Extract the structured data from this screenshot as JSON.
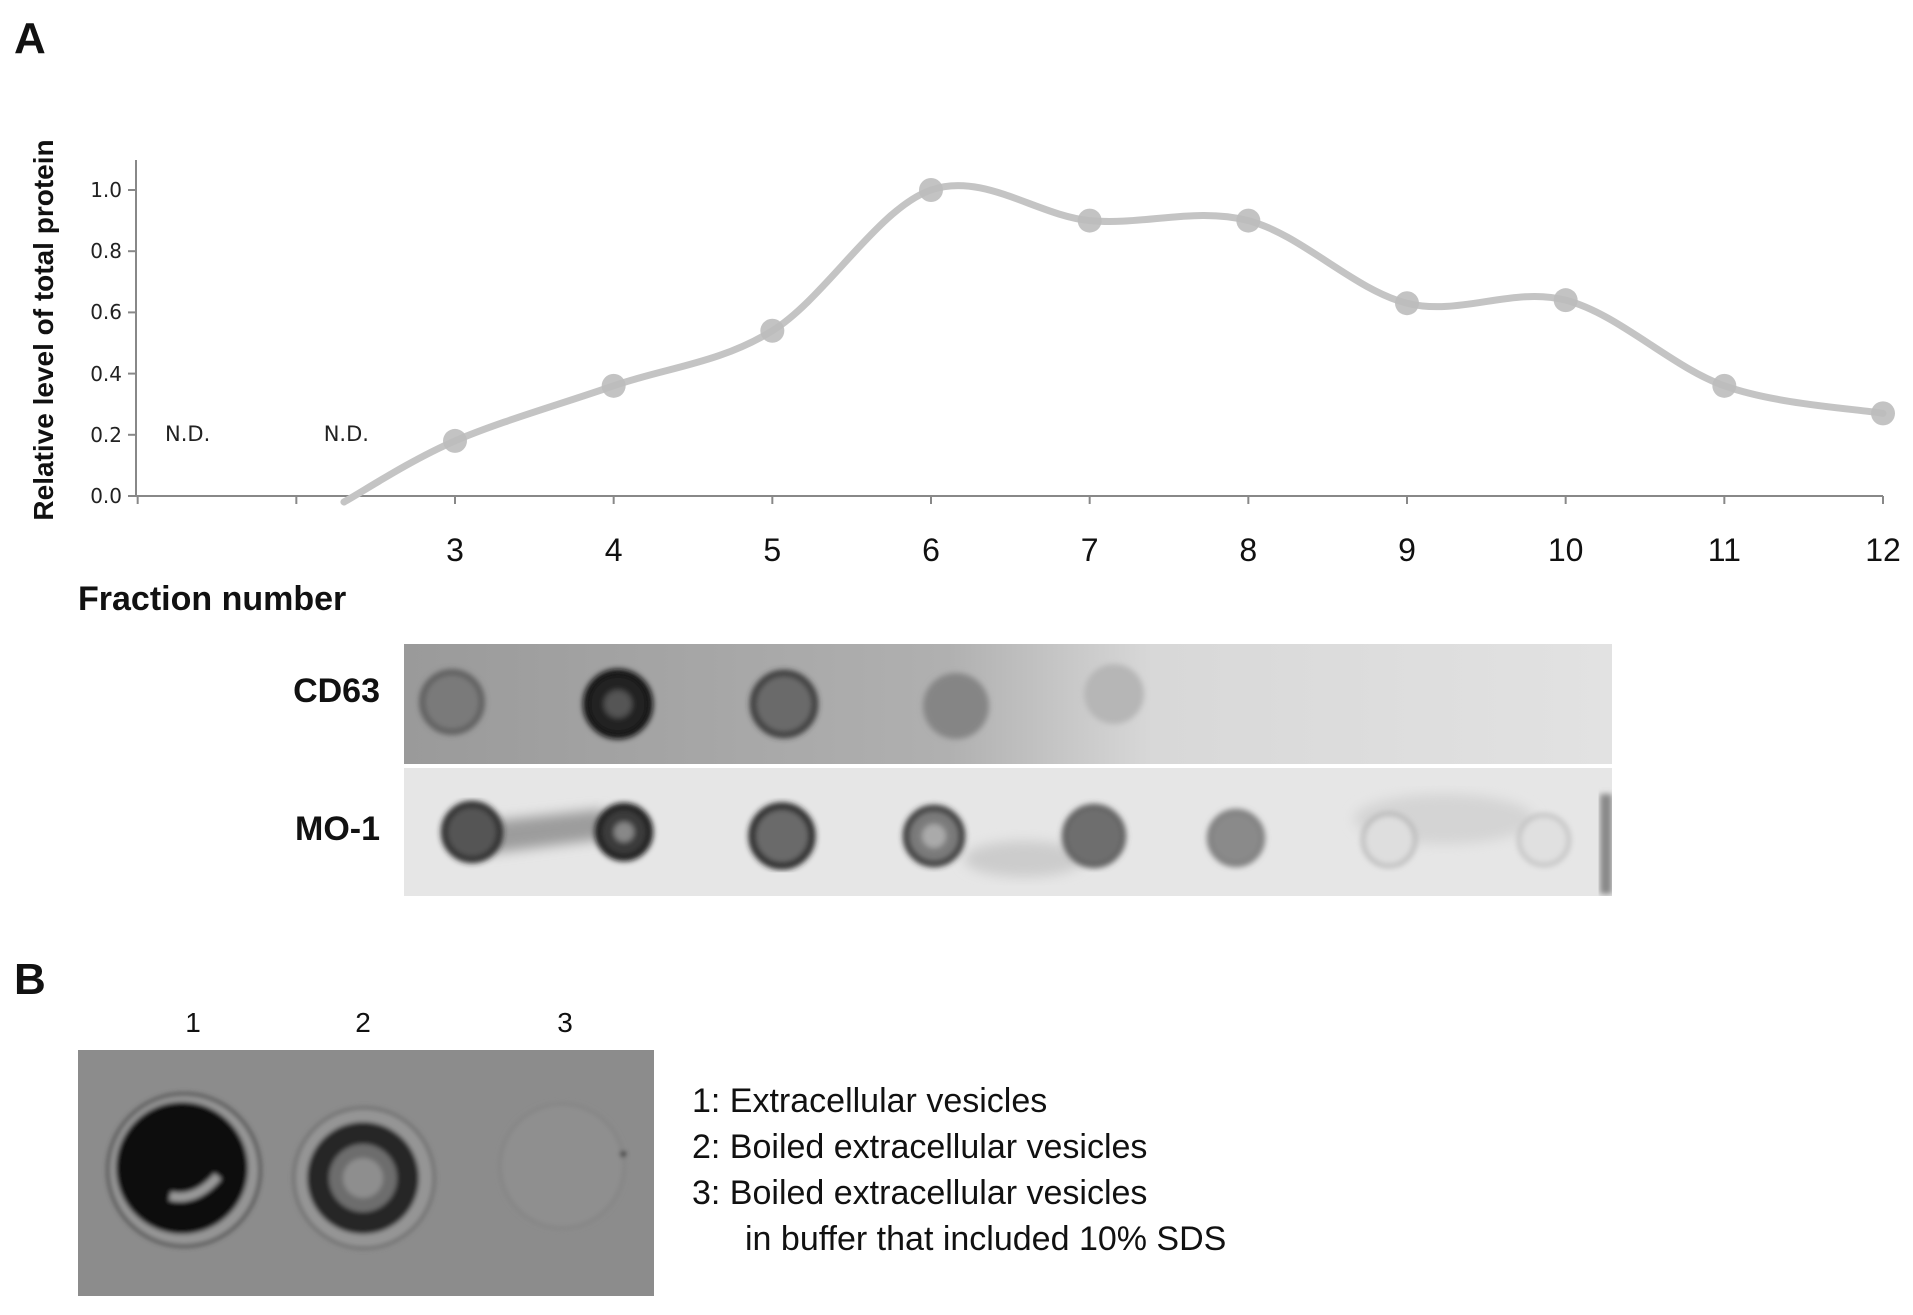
{
  "panels": {
    "a": "A",
    "b": "B"
  },
  "chart_data": {
    "type": "line",
    "ylabel": "Relative level of total protein",
    "xlabel": "Fraction number",
    "x_ticks": [
      "3",
      "4",
      "5",
      "6",
      "7",
      "8",
      "9",
      "10",
      "11",
      "12"
    ],
    "y_ticks": [
      "0.0",
      "0.2",
      "0.4",
      "0.6",
      "0.8",
      "1.0"
    ],
    "ylim": [
      0,
      1.1
    ],
    "series": [
      {
        "x": [
          3,
          4,
          5,
          6,
          7,
          8,
          9,
          10,
          11,
          12
        ],
        "values": [
          0.18,
          0.36,
          0.54,
          1.0,
          0.9,
          0.9,
          0.63,
          0.64,
          0.36,
          0.27
        ]
      }
    ],
    "annotations": [
      {
        "x": 1,
        "text": "N.D."
      },
      {
        "x": 2,
        "text": "N.D."
      }
    ],
    "colors": {
      "line": "#c4c4c4",
      "marker": "#bdbdbd",
      "axis": "#888888"
    }
  },
  "blots": {
    "rows": [
      {
        "label": "CD63"
      },
      {
        "label": "MO-1"
      }
    ]
  },
  "panel_b": {
    "lanes": [
      "1",
      "2",
      "3"
    ],
    "legend": [
      "1: Extracellular vesicles",
      "2: Boiled extracellular vesicles",
      "3: Boiled extracellular vesicles",
      "in buffer that included 10% SDS"
    ]
  }
}
